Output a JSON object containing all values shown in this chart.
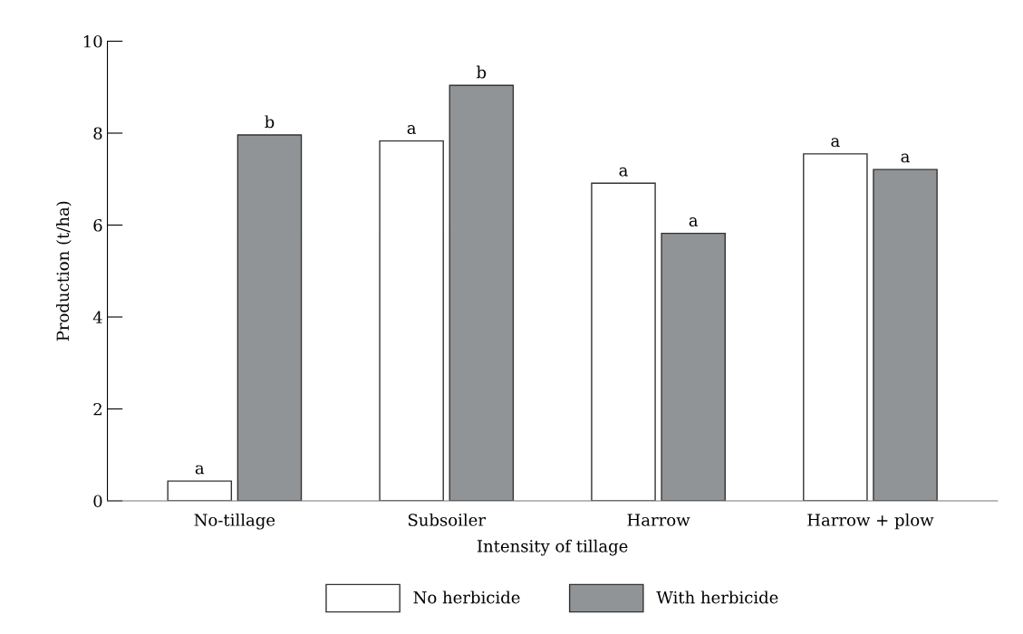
{
  "chart_data": {
    "type": "bar",
    "xlabel": "Intensity of tillage",
    "ylabel": "Production (t/ha)",
    "categories": [
      "No-tillage",
      "Subsoiler",
      "Harrow",
      "Harrow + plow"
    ],
    "series": [
      {
        "name": "No herbicide",
        "color": "#ffffff",
        "values": [
          0.43,
          7.83,
          6.91,
          7.55
        ],
        "value_labels": [
          "a",
          "a",
          "a",
          "a"
        ]
      },
      {
        "name": "With herbicide",
        "color": "#919496",
        "values": [
          7.96,
          9.04,
          5.82,
          7.21
        ],
        "value_labels": [
          "b",
          "b",
          "a",
          "a"
        ]
      }
    ],
    "ylim": [
      0,
      10
    ],
    "yticks": [
      0,
      2,
      4,
      6,
      8,
      10
    ],
    "grid": false,
    "legend": "bottom"
  }
}
